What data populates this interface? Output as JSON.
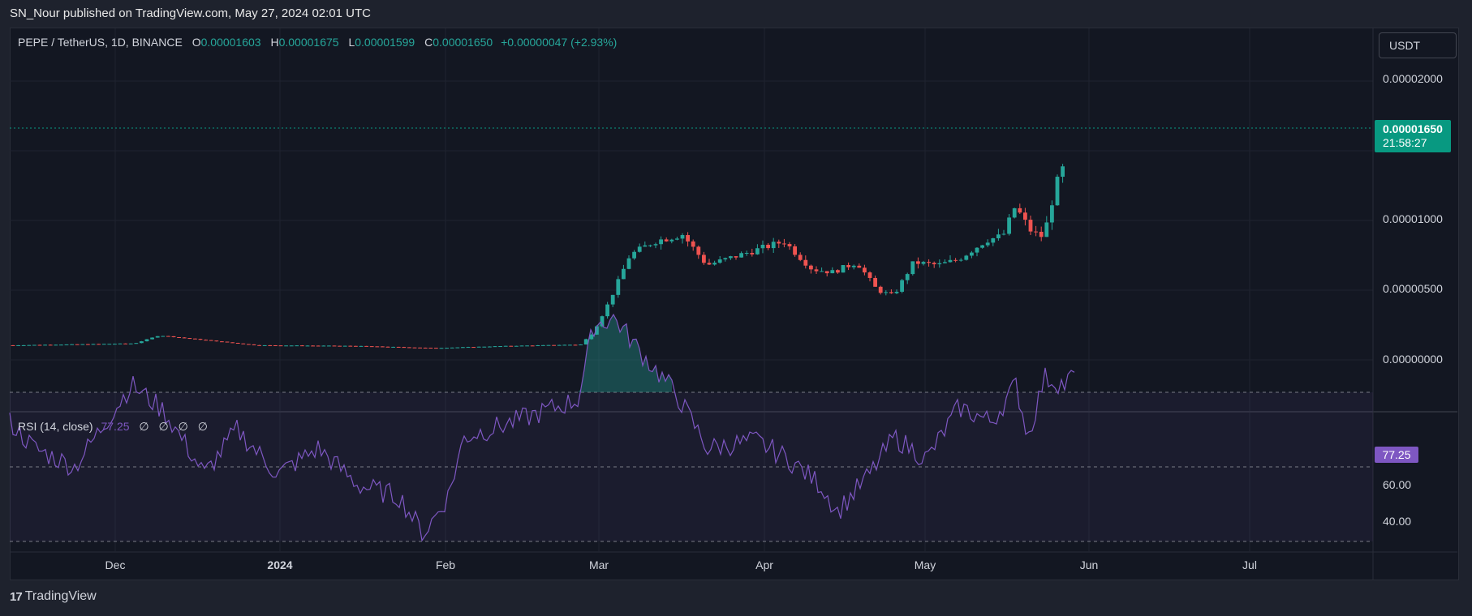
{
  "header": {
    "published_text": "SN_Nour published on TradingView.com, May 27, 2024 02:01 UTC"
  },
  "legend": {
    "symbol": "PEPE / TetherUS, 1D, BINANCE",
    "o_label": "O",
    "o_value": "0.00001603",
    "h_label": "H",
    "h_value": "0.00001675",
    "l_label": "L",
    "l_value": "0.00001599",
    "c_label": "C",
    "c_value": "0.00001650",
    "change": "+0.00000047 (+2.93%)"
  },
  "price_scale": {
    "currency": "USDT",
    "labels": [
      "0.00002000",
      "0.00001000",
      "0.00000500",
      "0.00000000"
    ],
    "last_price": "0.00001650",
    "countdown": "21:58:27"
  },
  "rsi": {
    "name": "RSI (14, close)",
    "value": "77.25",
    "na_values": [
      "∅",
      "∅",
      "∅",
      "∅"
    ],
    "scale_labels": [
      "60.00",
      "40.00"
    ]
  },
  "time_axis": {
    "labels": [
      "Dec",
      "2024",
      "Feb",
      "Mar",
      "Apr",
      "May",
      "Jun",
      "Jul"
    ]
  },
  "footer": {
    "brand": "TradingView"
  },
  "colors": {
    "up": "#26a69a",
    "down": "#ef5350",
    "rsi_line": "#7e57c2",
    "background": "#131722",
    "grid": "#1f2330"
  },
  "chart_data": {
    "type": "candlestick",
    "symbol": "PEPE / TetherUS",
    "interval": "1D",
    "ohlc_last": {
      "o": 1.603e-05,
      "h": 1.675e-05,
      "l": 1.599e-05,
      "c": 1.65e-05
    },
    "price_ylim": [
      0,
      2e-05
    ],
    "rsi_ylim": [
      30,
      100
    ],
    "rsi_bands": [
      70,
      50,
      30
    ],
    "grid": true
  }
}
